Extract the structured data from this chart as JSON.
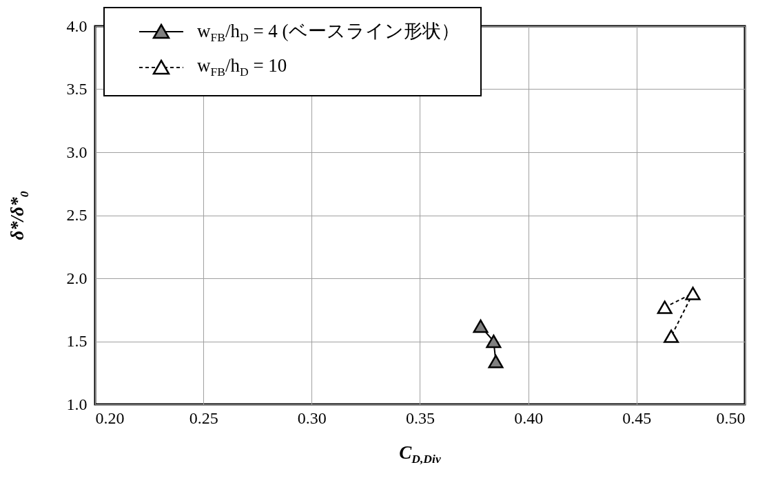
{
  "chart_data": {
    "type": "line",
    "xlabel": "C$_{D,Div}$",
    "ylabel": "δ*/δ*$_{0}$",
    "xlim": [
      0.2,
      0.5
    ],
    "ylim": [
      1.0,
      4.0
    ],
    "xticks": [
      {
        "value": 0.2,
        "label": "0.20"
      },
      {
        "value": 0.25,
        "label": "0.25"
      },
      {
        "value": 0.3,
        "label": "0.30"
      },
      {
        "value": 0.35,
        "label": "0.35"
      },
      {
        "value": 0.4,
        "label": "0.40"
      },
      {
        "value": 0.45,
        "label": "0.45"
      },
      {
        "value": 0.5,
        "label": "0.50"
      }
    ],
    "yticks": [
      {
        "value": 1,
        "label": "1.0"
      },
      {
        "value": 1.5,
        "label": "1.5"
      },
      {
        "value": 2,
        "label": "2.0"
      },
      {
        "value": 2.5,
        "label": "2.5"
      },
      {
        "value": 3,
        "label": "3.0"
      },
      {
        "value": 3.5,
        "label": "3.5"
      },
      {
        "value": 4,
        "label": "4.0"
      }
    ],
    "grid": true,
    "legend": "top left",
    "series": [
      {
        "name": "w$_{FB}$/h$_{D}$ = 4 (ベースライン形状）",
        "color": "#808080",
        "marker": "triangle",
        "line_style": "solid",
        "x": [
          0.378,
          0.384,
          0.385
        ],
        "values": [
          1.62,
          1.5,
          1.34
        ]
      },
      {
        "name": "w$_{FB}$/h$_{D}$ = 10",
        "color": "#ffffff",
        "marker": "triangle",
        "line_style": "dashed",
        "x": [
          0.463,
          0.476,
          0.466
        ],
        "values": [
          1.77,
          1.88,
          1.54
        ]
      }
    ]
  }
}
